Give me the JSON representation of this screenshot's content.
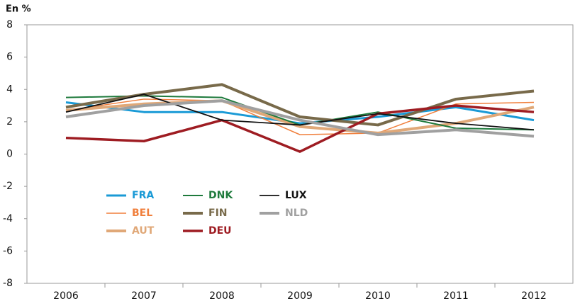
{
  "chart_data": {
    "type": "line",
    "y_label": "En %",
    "categories": [
      "2006",
      "2007",
      "2008",
      "2009",
      "2010",
      "2011",
      "2012"
    ],
    "ylim": [
      -8,
      8
    ],
    "yticks": [
      -8,
      -6,
      -4,
      -2,
      0,
      2,
      4,
      6,
      8
    ],
    "grid": false,
    "series": [
      {
        "name": "FRA",
        "color": "#1a9ad6",
        "width": 3,
        "values": [
          3.2,
          2.6,
          2.6,
          1.9,
          2.3,
          2.9,
          2.1
        ]
      },
      {
        "name": "BEL",
        "color": "#f07f3c",
        "width": 1.5,
        "values": [
          2.7,
          3.4,
          3.3,
          1.2,
          1.3,
          3.1,
          3.2
        ]
      },
      {
        "name": "AUT",
        "color": "#e0a878",
        "width": 4,
        "values": [
          2.7,
          3.1,
          3.3,
          1.7,
          1.3,
          1.9,
          2.9
        ]
      },
      {
        "name": "DNK",
        "color": "#1e7a3c",
        "width": 2,
        "values": [
          3.5,
          3.6,
          3.5,
          1.8,
          2.6,
          1.6,
          1.5
        ]
      },
      {
        "name": "FIN",
        "color": "#786a4a",
        "width": 4,
        "values": [
          2.9,
          3.7,
          4.3,
          2.3,
          1.8,
          3.4,
          3.9
        ]
      },
      {
        "name": "DEU",
        "color": "#9e1c22",
        "width": 3.5,
        "values": [
          1.0,
          0.8,
          2.1,
          0.15,
          2.5,
          3.0,
          2.6
        ]
      },
      {
        "name": "LUX",
        "color": "#111111",
        "width": 1.8,
        "values": [
          2.6,
          3.7,
          2.1,
          1.8,
          2.5,
          1.9,
          1.5
        ]
      },
      {
        "name": "NLD",
        "color": "#a0a0a0",
        "width": 4,
        "values": [
          2.3,
          3.0,
          3.3,
          2.1,
          1.2,
          1.5,
          1.1
        ]
      }
    ]
  }
}
